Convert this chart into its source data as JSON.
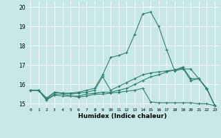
{
  "xlabel": "Humidex (Indice chaleur)",
  "background_color": "#c8e8e8",
  "grid_color": "#ffffff",
  "line_color": "#2d7d6e",
  "xlim": [
    -0.5,
    23.5
  ],
  "ylim": [
    14.8,
    20.3
  ],
  "yticks": [
    15,
    16,
    17,
    18,
    19,
    20
  ],
  "xticks": [
    0,
    1,
    2,
    3,
    4,
    5,
    6,
    7,
    8,
    9,
    10,
    11,
    12,
    13,
    14,
    15,
    16,
    17,
    18,
    19,
    20,
    21,
    22,
    23
  ],
  "series": [
    [
      15.7,
      15.7,
      15.3,
      15.6,
      15.55,
      15.5,
      15.55,
      15.6,
      15.7,
      16.4,
      15.7,
      15.9,
      16.1,
      16.3,
      16.5,
      16.6,
      16.65,
      16.7,
      16.75,
      16.9,
      16.3,
      16.3,
      15.8,
      14.9
    ],
    [
      15.7,
      15.7,
      15.2,
      15.5,
      15.5,
      15.4,
      15.4,
      15.5,
      15.55,
      15.6,
      15.6,
      15.7,
      15.8,
      16.0,
      16.2,
      16.4,
      16.5,
      16.65,
      16.75,
      16.85,
      16.2,
      16.3,
      15.75,
      14.92
    ],
    [
      15.7,
      15.7,
      15.2,
      15.45,
      15.4,
      15.4,
      15.35,
      15.4,
      15.5,
      15.5,
      15.55,
      15.6,
      15.65,
      15.7,
      15.8,
      15.1,
      15.05,
      15.05,
      15.05,
      15.05,
      15.05,
      15.0,
      15.0,
      14.9
    ],
    [
      15.7,
      15.7,
      15.25,
      15.6,
      15.55,
      15.55,
      15.6,
      15.7,
      15.8,
      16.5,
      17.4,
      17.5,
      17.65,
      18.6,
      19.65,
      19.75,
      19.0,
      17.8,
      16.7,
      16.8,
      16.8,
      16.3,
      15.8,
      14.9
    ]
  ]
}
